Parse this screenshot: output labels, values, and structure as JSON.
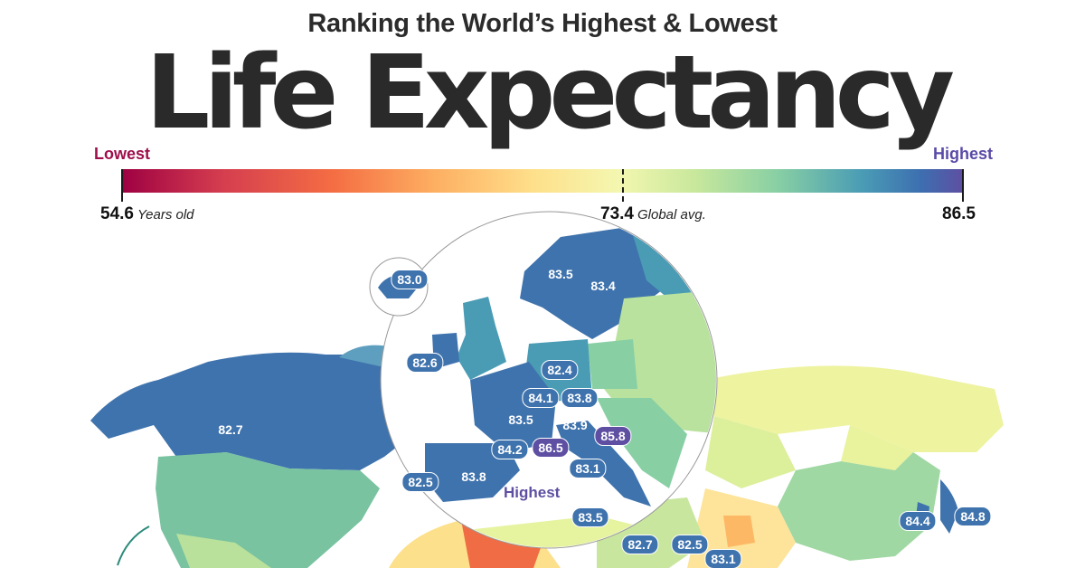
{
  "header": {
    "subtitle": "Ranking the World’s Highest & Lowest",
    "title": "Life Expectancy"
  },
  "legend": {
    "low_label": "Lowest",
    "high_label": "Highest",
    "min_value": "54.6",
    "min_unit": "Years old",
    "avg_value": "73.4",
    "avg_label": "Global avg.",
    "max_value": "86.5",
    "colors": [
      "#9e0142",
      "#d53e4f",
      "#f46d43",
      "#fdae61",
      "#fee08b",
      "#f4f7b0",
      "#c9e89c",
      "#88cfa4",
      "#4a9cb5",
      "#3d6fb0",
      "#5e4fa2"
    ]
  },
  "map": {
    "highest_note": "Highest",
    "labels": [
      {
        "id": "canada",
        "value": "82.7"
      },
      {
        "id": "iceland",
        "value": "83.0"
      },
      {
        "id": "norway",
        "value": "83.5"
      },
      {
        "id": "sweden",
        "value": "83.4"
      },
      {
        "id": "ireland",
        "value": "82.6"
      },
      {
        "id": "germany",
        "value": "82.4"
      },
      {
        "id": "luxembourg",
        "value": "84.1"
      },
      {
        "id": "liechtenstein",
        "value": "83.8"
      },
      {
        "id": "france",
        "value": "83.5"
      },
      {
        "id": "switzerland",
        "value": "83.9"
      },
      {
        "id": "andorra",
        "value": "84.2"
      },
      {
        "id": "monaco",
        "value": "86.5"
      },
      {
        "id": "san-marino",
        "value": "85.8"
      },
      {
        "id": "italy",
        "value": "83.1"
      },
      {
        "id": "spain",
        "value": "83.8"
      },
      {
        "id": "portugal",
        "value": "82.5"
      },
      {
        "id": "malta",
        "value": "83.5"
      },
      {
        "id": "cyprus",
        "value": "82.7"
      },
      {
        "id": "lebanon",
        "value": "82.5"
      },
      {
        "id": "israel",
        "value": "83.1"
      },
      {
        "id": "south-korea",
        "value": "84.4"
      },
      {
        "id": "japan",
        "value": "84.8"
      }
    ]
  }
}
